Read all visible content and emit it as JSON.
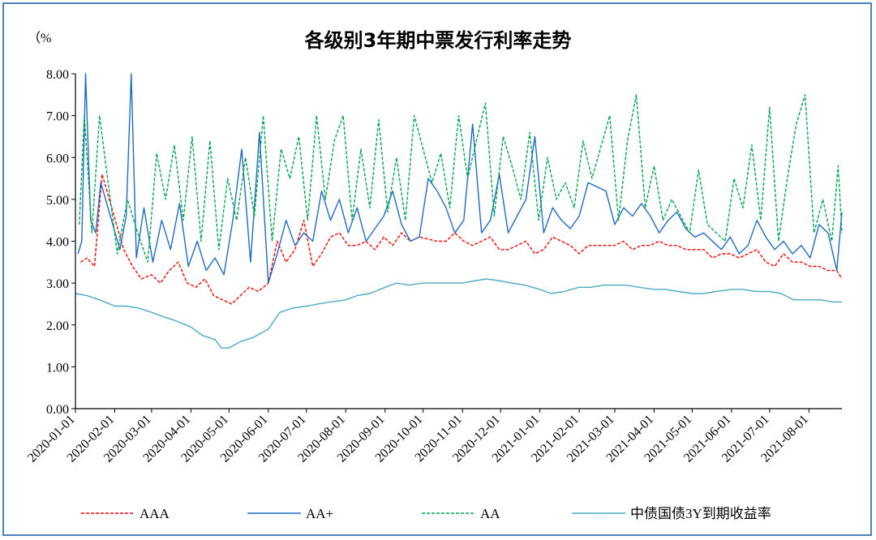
{
  "chart_data": {
    "type": "line",
    "title": "各级别3年期中票发行利率走势",
    "ylabel": "（%",
    "ylim": [
      0,
      8
    ],
    "yticks": [
      "0.00",
      "1.00",
      "2.00",
      "3.00",
      "4.00",
      "5.00",
      "6.00",
      "7.00",
      "8.00"
    ],
    "xticks": [
      "2020-01-01",
      "2020-02-01",
      "2020-03-01",
      "2020-04-01",
      "2020-05-01",
      "2020-06-01",
      "2020-07-01",
      "2020-08-01",
      "2020-09-01",
      "2020-10-01",
      "2020-11-01",
      "2020-12-01",
      "2021-01-01",
      "2021-02-01",
      "2021-03-01",
      "2021-04-01",
      "2021-05-01",
      "2021-06-01",
      "2021-07-01",
      "2021-08-01"
    ],
    "legend_position": "bottom",
    "series": [
      {
        "name": "AAA",
        "color": "#ff0000",
        "style": "dashed",
        "x": [
          "2020-01-05",
          "2020-01-10",
          "2020-01-16",
          "2020-01-22",
          "2020-02-08",
          "2020-02-15",
          "2020-02-22",
          "2020-03-01",
          "2020-03-08",
          "2020-03-15",
          "2020-03-22",
          "2020-03-29",
          "2020-04-05",
          "2020-04-12",
          "2020-04-19",
          "2020-04-26",
          "2020-05-03",
          "2020-05-10",
          "2020-05-17",
          "2020-05-24",
          "2020-06-01",
          "2020-06-08",
          "2020-06-15",
          "2020-06-22",
          "2020-06-29",
          "2020-07-06",
          "2020-07-13",
          "2020-07-20",
          "2020-07-27",
          "2020-08-03",
          "2020-08-10",
          "2020-08-17",
          "2020-08-24",
          "2020-08-31",
          "2020-09-07",
          "2020-09-14",
          "2020-09-21",
          "2020-09-28",
          "2020-10-12",
          "2020-10-19",
          "2020-10-26",
          "2020-11-02",
          "2020-11-09",
          "2020-11-16",
          "2020-11-23",
          "2020-11-30",
          "2020-12-07",
          "2020-12-14",
          "2020-12-21",
          "2020-12-28",
          "2021-01-04",
          "2021-01-11",
          "2021-01-18",
          "2021-01-25",
          "2021-02-01",
          "2021-02-08",
          "2021-02-22",
          "2021-03-01",
          "2021-03-08",
          "2021-03-15",
          "2021-03-22",
          "2021-03-29",
          "2021-04-05",
          "2021-04-12",
          "2021-04-19",
          "2021-04-26",
          "2021-05-03",
          "2021-05-10",
          "2021-05-17",
          "2021-05-24",
          "2021-05-31",
          "2021-06-07",
          "2021-06-14",
          "2021-06-21",
          "2021-06-28",
          "2021-07-05",
          "2021-07-12",
          "2021-07-19",
          "2021-07-26",
          "2021-08-02",
          "2021-08-09",
          "2021-08-16",
          "2021-08-23",
          "2021-08-27"
        ],
        "values": [
          3.5,
          3.6,
          3.4,
          5.6,
          3.8,
          3.4,
          3.1,
          3.2,
          3.0,
          3.3,
          3.5,
          3.0,
          2.9,
          3.1,
          2.7,
          2.6,
          2.5,
          2.7,
          2.9,
          2.8,
          3.0,
          4.0,
          3.5,
          3.8,
          4.5,
          3.4,
          3.7,
          4.1,
          4.2,
          3.9,
          3.9,
          4.0,
          3.8,
          4.1,
          3.9,
          4.2,
          4.0,
          4.1,
          4.0,
          4.0,
          4.2,
          4.0,
          3.9,
          4.0,
          4.1,
          3.8,
          3.8,
          3.9,
          4.0,
          3.7,
          3.8,
          4.1,
          4.0,
          3.9,
          3.7,
          3.9,
          3.9,
          3.9,
          4.0,
          3.8,
          3.9,
          3.9,
          4.0,
          3.9,
          3.9,
          3.8,
          3.8,
          3.8,
          3.6,
          3.7,
          3.7,
          3.6,
          3.7,
          3.8,
          3.5,
          3.4,
          3.7,
          3.5,
          3.5,
          3.4,
          3.4,
          3.3,
          3.3,
          3.1
        ]
      },
      {
        "name": "AA+",
        "color": "#1f6bc2",
        "style": "solid",
        "x": [
          "2020-01-03",
          "2020-01-06",
          "2020-01-09",
          "2020-01-13",
          "2020-01-17",
          "2020-01-21",
          "2020-02-05",
          "2020-02-10",
          "2020-02-14",
          "2020-02-18",
          "2020-02-24",
          "2020-03-02",
          "2020-03-09",
          "2020-03-16",
          "2020-03-23",
          "2020-03-30",
          "2020-04-06",
          "2020-04-13",
          "2020-04-20",
          "2020-04-27",
          "2020-05-04",
          "2020-05-11",
          "2020-05-18",
          "2020-05-25",
          "2020-06-01",
          "2020-06-08",
          "2020-06-15",
          "2020-06-22",
          "2020-06-29",
          "2020-07-06",
          "2020-07-13",
          "2020-07-20",
          "2020-07-27",
          "2020-08-03",
          "2020-08-10",
          "2020-08-17",
          "2020-08-24",
          "2020-08-31",
          "2020-09-07",
          "2020-09-14",
          "2020-09-21",
          "2020-09-28",
          "2020-10-05",
          "2020-10-12",
          "2020-10-19",
          "2020-10-26",
          "2020-11-02",
          "2020-11-09",
          "2020-11-16",
          "2020-11-23",
          "2020-11-30",
          "2020-12-07",
          "2020-12-14",
          "2020-12-21",
          "2020-12-28",
          "2021-01-04",
          "2021-01-11",
          "2021-01-18",
          "2021-01-25",
          "2021-02-01",
          "2021-02-08",
          "2021-02-22",
          "2021-03-01",
          "2021-03-08",
          "2021-03-15",
          "2021-03-22",
          "2021-03-29",
          "2021-04-05",
          "2021-04-12",
          "2021-04-19",
          "2021-04-26",
          "2021-05-03",
          "2021-05-10",
          "2021-05-17",
          "2021-05-24",
          "2021-05-31",
          "2021-06-07",
          "2021-06-14",
          "2021-06-21",
          "2021-06-28",
          "2021-07-05",
          "2021-07-12",
          "2021-07-19",
          "2021-07-26",
          "2021-08-02",
          "2021-08-09",
          "2021-08-16",
          "2021-08-23",
          "2021-08-27"
        ],
        "values": [
          3.7,
          4.0,
          8.0,
          4.5,
          4.2,
          5.4,
          3.8,
          4.6,
          8.0,
          3.6,
          4.8,
          3.5,
          4.5,
          3.8,
          4.9,
          3.4,
          4.0,
          3.3,
          3.6,
          3.2,
          4.5,
          6.2,
          3.5,
          6.6,
          3.0,
          3.7,
          4.5,
          3.9,
          4.2,
          4.0,
          5.2,
          4.5,
          5.0,
          4.2,
          4.8,
          4.0,
          4.3,
          4.6,
          5.2,
          4.4,
          4.0,
          4.1,
          5.5,
          5.2,
          4.8,
          4.2,
          4.5,
          6.8,
          4.2,
          4.5,
          5.6,
          4.2,
          4.6,
          5.0,
          6.5,
          4.2,
          4.8,
          4.5,
          4.3,
          4.6,
          5.4,
          5.2,
          4.4,
          4.8,
          4.6,
          4.9,
          4.6,
          4.2,
          4.5,
          4.7,
          4.3,
          4.1,
          4.2,
          4.0,
          3.8,
          4.1,
          3.7,
          3.9,
          4.5,
          4.1,
          3.8,
          4.0,
          3.7,
          3.9,
          3.6,
          4.4,
          4.2,
          3.3,
          4.7
        ]
      },
      {
        "name": "AA",
        "color": "#00a651",
        "style": "dashed",
        "x": [
          "2020-01-04",
          "2020-01-08",
          "2020-01-14",
          "2020-01-20",
          "2020-02-03",
          "2020-02-11",
          "2020-02-19",
          "2020-02-27",
          "2020-03-05",
          "2020-03-12",
          "2020-03-19",
          "2020-03-26",
          "2020-04-02",
          "2020-04-09",
          "2020-04-16",
          "2020-04-23",
          "2020-04-30",
          "2020-05-07",
          "2020-05-14",
          "2020-05-21",
          "2020-05-28",
          "2020-06-04",
          "2020-06-11",
          "2020-06-18",
          "2020-06-25",
          "2020-07-02",
          "2020-07-09",
          "2020-07-16",
          "2020-07-23",
          "2020-07-30",
          "2020-08-06",
          "2020-08-13",
          "2020-08-20",
          "2020-08-27",
          "2020-09-03",
          "2020-09-10",
          "2020-09-17",
          "2020-09-24",
          "2020-10-08",
          "2020-10-15",
          "2020-10-22",
          "2020-10-29",
          "2020-11-05",
          "2020-11-12",
          "2020-11-19",
          "2020-11-26",
          "2020-12-03",
          "2020-12-10",
          "2020-12-17",
          "2020-12-24",
          "2020-12-31",
          "2021-01-07",
          "2021-01-14",
          "2021-01-21",
          "2021-01-28",
          "2021-02-04",
          "2021-02-11",
          "2021-02-25",
          "2021-03-04",
          "2021-03-11",
          "2021-03-18",
          "2021-03-25",
          "2021-04-01",
          "2021-04-08",
          "2021-04-15",
          "2021-04-22",
          "2021-04-29",
          "2021-05-06",
          "2021-05-13",
          "2021-05-20",
          "2021-05-27",
          "2021-06-03",
          "2021-06-10",
          "2021-06-17",
          "2021-06-24",
          "2021-07-01",
          "2021-07-08",
          "2021-07-15",
          "2021-07-22",
          "2021-07-29",
          "2021-08-05",
          "2021-08-12",
          "2021-08-19",
          "2021-08-24",
          "2021-08-27"
        ],
        "values": [
          4.4,
          7.0,
          4.2,
          7.0,
          3.7,
          5.0,
          4.2,
          3.5,
          6.1,
          5.0,
          6.3,
          4.5,
          6.5,
          4.0,
          6.4,
          3.8,
          5.5,
          4.5,
          6.0,
          4.6,
          7.0,
          4.0,
          6.2,
          5.5,
          6.5,
          4.5,
          7.0,
          5.0,
          6.4,
          7.0,
          4.5,
          6.2,
          4.8,
          6.9,
          4.7,
          6.0,
          4.5,
          7.0,
          5.4,
          6.1,
          4.8,
          7.0,
          5.5,
          6.4,
          7.3,
          4.6,
          6.5,
          5.8,
          5.0,
          6.6,
          4.5,
          6.0,
          5.0,
          5.4,
          4.8,
          6.4,
          5.5,
          7.0,
          4.5,
          6.4,
          7.5,
          4.8,
          5.8,
          4.5,
          5.0,
          4.6,
          4.2,
          5.7,
          4.4,
          4.2,
          4.0,
          5.5,
          4.8,
          6.3,
          4.5,
          7.2,
          4.0,
          5.5,
          6.8,
          7.5,
          4.2,
          5.0,
          4.0,
          5.8,
          4.2
        ]
      },
      {
        "name": "中债国债3Y到期收益率",
        "color": "#4bacc6",
        "style": "solid",
        "x": [
          "2020-01-01",
          "2020-01-10",
          "2020-01-20",
          "2020-02-01",
          "2020-02-10",
          "2020-02-20",
          "2020-03-01",
          "2020-03-10",
          "2020-03-20",
          "2020-04-01",
          "2020-04-10",
          "2020-04-20",
          "2020-04-25",
          "2020-05-01",
          "2020-05-10",
          "2020-05-20",
          "2020-06-01",
          "2020-06-10",
          "2020-06-20",
          "2020-07-01",
          "2020-07-10",
          "2020-07-20",
          "2020-08-01",
          "2020-08-10",
          "2020-08-20",
          "2020-09-01",
          "2020-09-10",
          "2020-09-20",
          "2020-10-01",
          "2020-10-10",
          "2020-10-20",
          "2020-11-01",
          "2020-11-10",
          "2020-11-20",
          "2020-12-01",
          "2020-12-10",
          "2020-12-20",
          "2021-01-01",
          "2021-01-10",
          "2021-01-20",
          "2021-02-01",
          "2021-02-10",
          "2021-02-20",
          "2021-03-01",
          "2021-03-10",
          "2021-03-20",
          "2021-04-01",
          "2021-04-10",
          "2021-04-20",
          "2021-05-01",
          "2021-05-10",
          "2021-05-20",
          "2021-06-01",
          "2021-06-10",
          "2021-06-20",
          "2021-07-01",
          "2021-07-10",
          "2021-07-20",
          "2021-08-01",
          "2021-08-10",
          "2021-08-20",
          "2021-08-27"
        ],
        "values": [
          2.75,
          2.7,
          2.6,
          2.45,
          2.45,
          2.4,
          2.3,
          2.2,
          2.1,
          1.95,
          1.75,
          1.65,
          1.45,
          1.45,
          1.6,
          1.7,
          1.9,
          2.3,
          2.4,
          2.45,
          2.5,
          2.55,
          2.6,
          2.7,
          2.75,
          2.9,
          3.0,
          2.95,
          3.0,
          3.0,
          3.0,
          3.0,
          3.05,
          3.1,
          3.05,
          3.0,
          2.95,
          2.85,
          2.75,
          2.8,
          2.9,
          2.9,
          2.95,
          2.95,
          2.95,
          2.9,
          2.85,
          2.85,
          2.8,
          2.75,
          2.75,
          2.8,
          2.85,
          2.85,
          2.8,
          2.8,
          2.75,
          2.6,
          2.6,
          2.6,
          2.55,
          2.55
        ]
      }
    ]
  }
}
